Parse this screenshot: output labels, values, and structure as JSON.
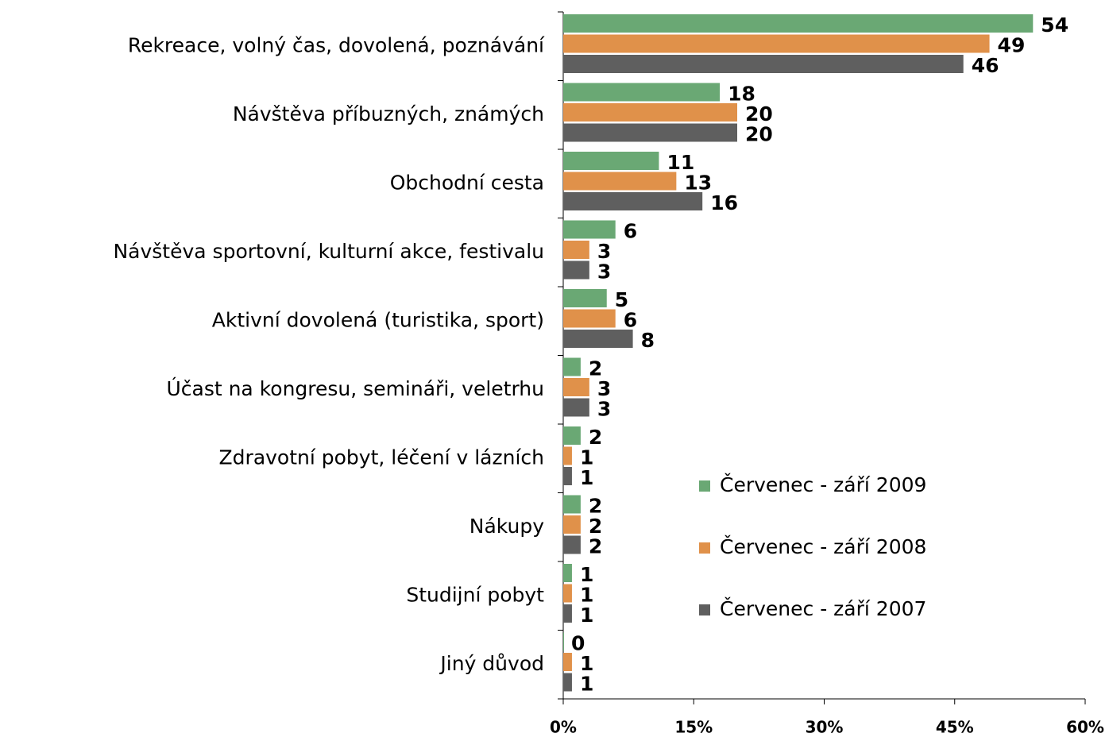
{
  "chart_data": {
    "type": "bar",
    "orientation": "horizontal",
    "categories": [
      "Rekreace, volný čas, dovolená, poznávání",
      "Návštěva příbuzných, známých",
      "Obchodní cesta",
      "Návštěva sportovní, kulturní akce, festivalu",
      "Aktivní dovolená (turistika, sport)",
      "Účast na kongresu, semináři, veletrhu",
      "Zdravotní pobyt, léčení v lázních",
      "Nákupy",
      "Studijní pobyt",
      "Jiný důvod"
    ],
    "series": [
      {
        "name": "Červenec - září 2009",
        "color": "#6aa874",
        "values": [
          54,
          18,
          11,
          6,
          5,
          2,
          2,
          2,
          1,
          0
        ]
      },
      {
        "name": "Červenec - září 2008",
        "color": "#e0914a",
        "values": [
          49,
          20,
          13,
          3,
          6,
          3,
          1,
          2,
          1,
          1
        ]
      },
      {
        "name": "Červenec - září 2007",
        "color": "#5f5f5f",
        "values": [
          46,
          20,
          16,
          3,
          8,
          3,
          1,
          2,
          1,
          1
        ]
      }
    ],
    "xlim": [
      0,
      60
    ],
    "xticks": [
      {
        "value": 0,
        "label": "0%"
      },
      {
        "value": 15,
        "label": "15%"
      },
      {
        "value": 30,
        "label": "30%"
      },
      {
        "value": 45,
        "label": "45%"
      },
      {
        "value": 60,
        "label": "60%"
      }
    ],
    "legend": "right"
  }
}
